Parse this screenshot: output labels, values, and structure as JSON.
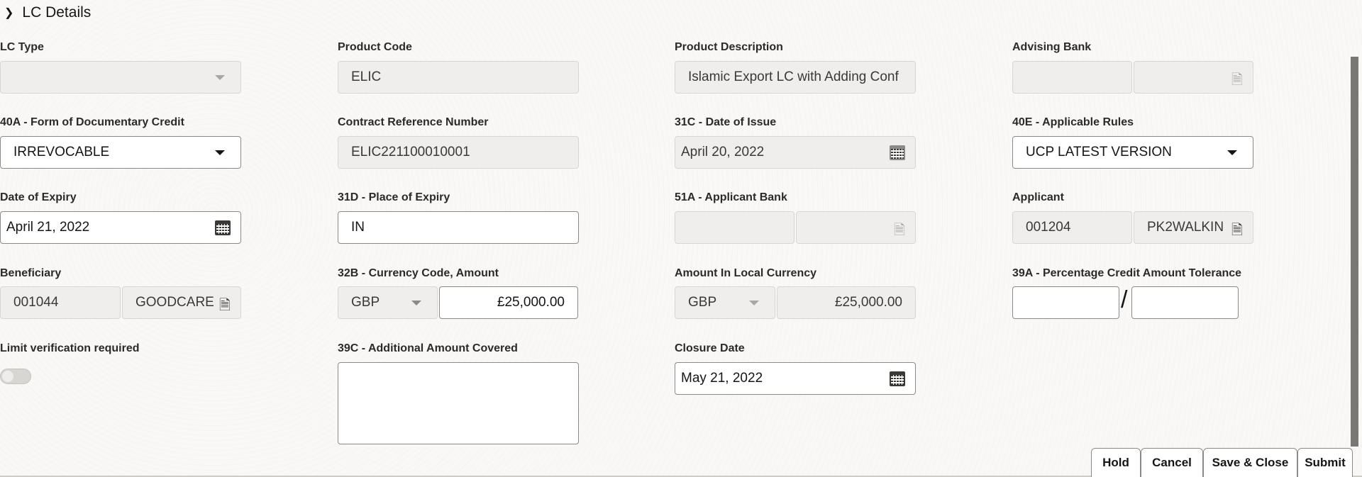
{
  "section": {
    "title": "LC Details",
    "icon": "chevron-down-icon"
  },
  "fields": {
    "lc_type": {
      "label": "LC Type",
      "value": ""
    },
    "product_code": {
      "label": "Product Code",
      "value": "ELIC"
    },
    "product_description": {
      "label": "Product Description",
      "value": "Islamic Export LC with Adding Conf"
    },
    "advising_bank": {
      "label": "Advising Bank",
      "code": "",
      "name": ""
    },
    "form_of_credit": {
      "label": "40A - Form of Documentary Credit",
      "value": "IRREVOCABLE"
    },
    "contract_ref": {
      "label": "Contract Reference Number",
      "value": "ELIC221100010001"
    },
    "date_of_issue": {
      "label": "31C - Date of Issue",
      "value": "April 20, 2022"
    },
    "applicable_rules": {
      "label": "40E - Applicable Rules",
      "value": "UCP LATEST VERSION"
    },
    "date_of_expiry": {
      "label": "Date of Expiry",
      "value": "April 21, 2022"
    },
    "place_of_expiry": {
      "label": "31D - Place of Expiry",
      "value": "IN"
    },
    "applicant_bank": {
      "label": "51A - Applicant Bank",
      "code": "",
      "name": ""
    },
    "applicant": {
      "label": "Applicant",
      "code": "001204",
      "name": "PK2WALKIN"
    },
    "beneficiary": {
      "label": "Beneficiary",
      "code": "001044",
      "name": "GOODCARE"
    },
    "currency_amount": {
      "label": "32B - Currency Code, Amount",
      "currency": "GBP",
      "amount": "£25,000.00"
    },
    "local_amount": {
      "label": "Amount In Local Currency",
      "currency": "GBP",
      "amount": "£25,000.00"
    },
    "tolerance": {
      "label": "39A - Percentage Credit Amount Tolerance",
      "plus": "",
      "minus": "",
      "separator": "/"
    },
    "limit_verification": {
      "label": "Limit verification required",
      "on": false
    },
    "additional_amount": {
      "label": "39C - Additional Amount Covered",
      "value": ""
    },
    "closure_date": {
      "label": "Closure Date",
      "value": "May 21, 2022"
    }
  },
  "buttons": {
    "hold": "Hold",
    "cancel": "Cancel",
    "save_close": "Save & Close",
    "submit": "Submit"
  }
}
